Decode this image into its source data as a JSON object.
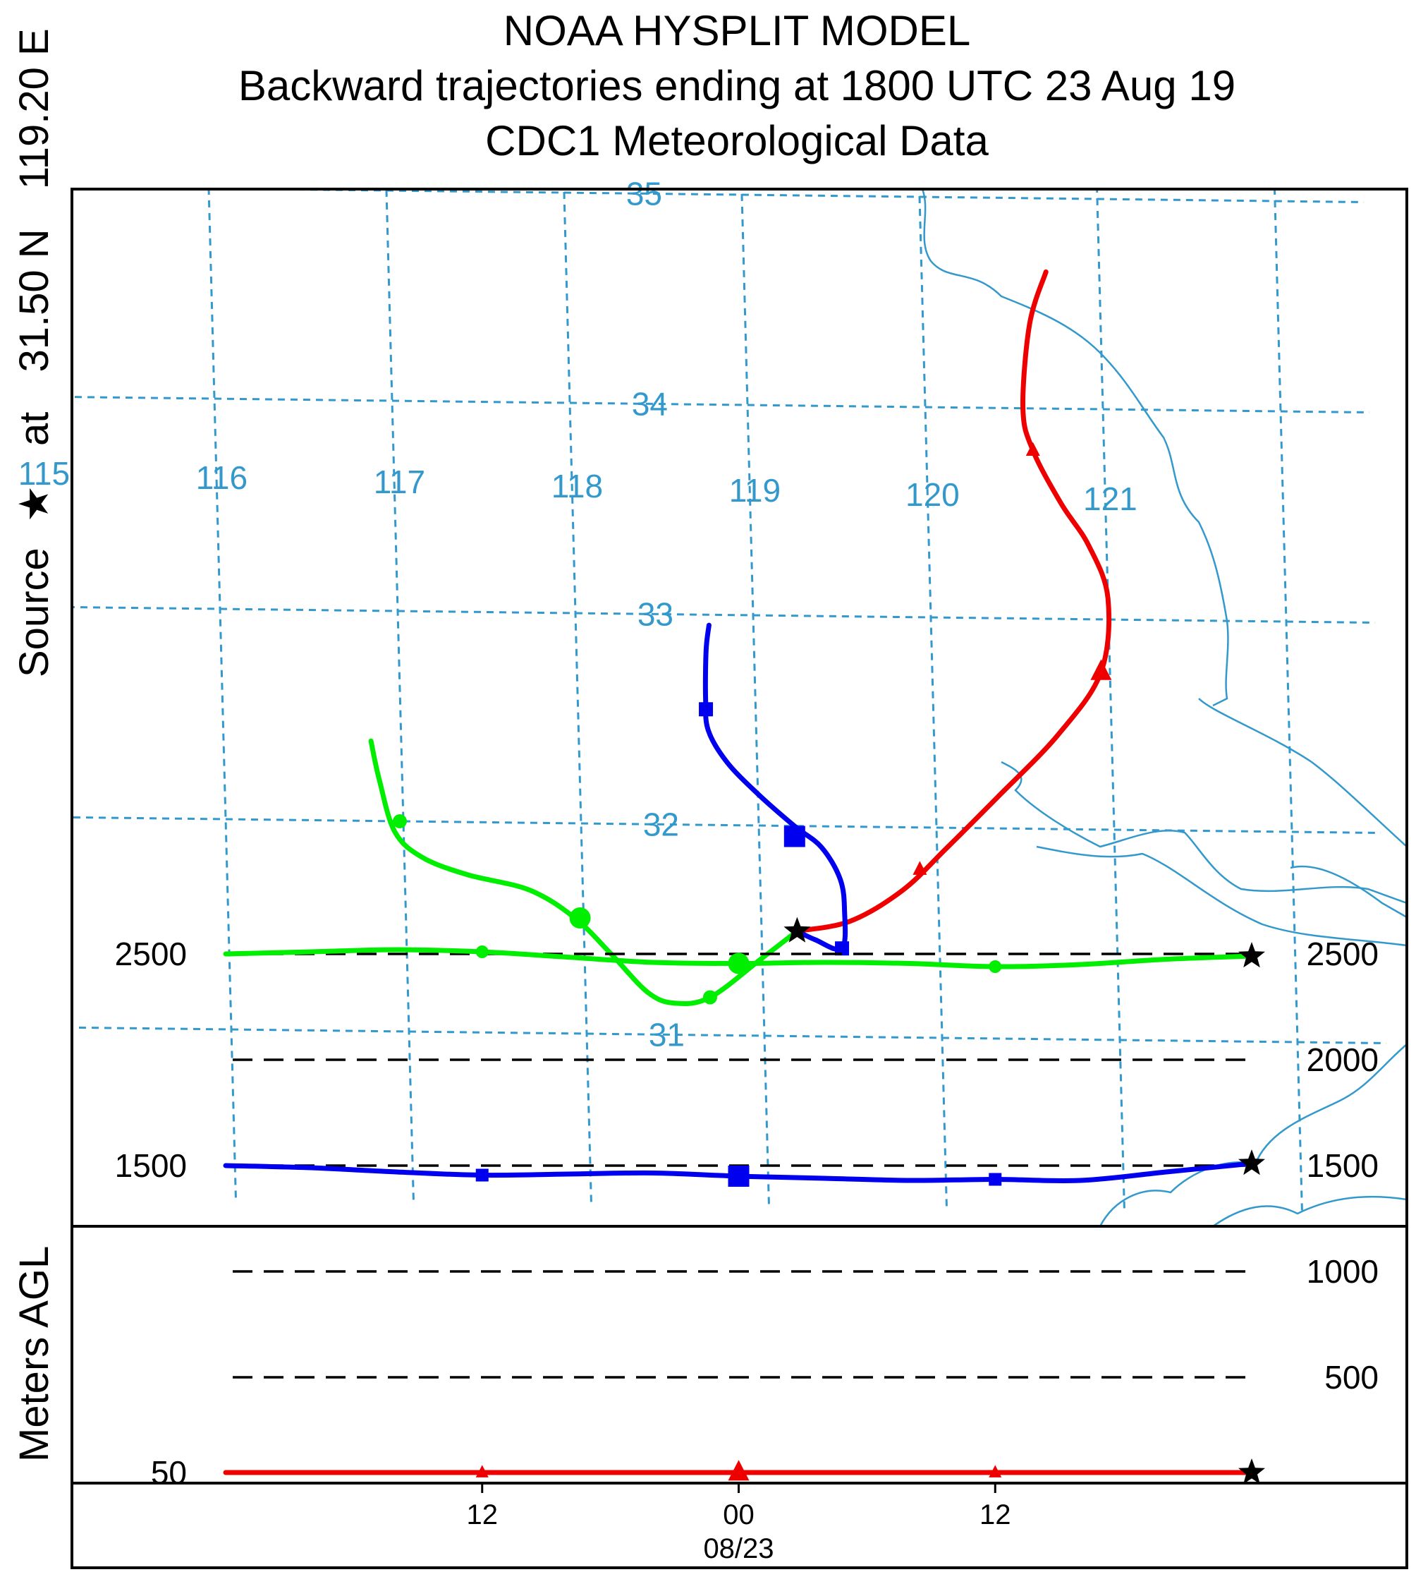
{
  "titles": {
    "line1": "NOAA HYSPLIT MODEL",
    "line2": "Backward trajectories ending at 1800 UTC 23 Aug 19",
    "line3": "CDC1 Meteorological Data"
  },
  "side_label": {
    "source": "Source",
    "star": "★",
    "at": "at",
    "lat": "31.50 N",
    "lon": "119.20 E"
  },
  "vertical_axis_label": "Meters AGL",
  "colors": {
    "grid": "#3399cc",
    "green": "#00ee00",
    "blue": "#0000ee",
    "red": "#ee0000",
    "coast": "#3399cc"
  },
  "chart_data": {
    "type": "line",
    "map": {
      "longitudes": [
        "115",
        "116",
        "117",
        "118",
        "119",
        "120",
        "121"
      ],
      "latitudes": [
        "35",
        "34",
        "33",
        "32",
        "31"
      ],
      "source": {
        "lat": 31.5,
        "lon": 119.2
      },
      "series": [
        {
          "name": "50 m AGL",
          "color": "#ee0000",
          "marker": "triangle",
          "path": [
            [
              119.2,
              31.5
            ],
            [
              119.5,
              31.55
            ],
            [
              119.8,
              31.7
            ],
            [
              120.05,
              31.9
            ],
            [
              120.35,
              32.15
            ],
            [
              120.7,
              32.45
            ],
            [
              120.95,
              32.75
            ],
            [
              121.0,
              33.1
            ],
            [
              120.9,
              33.35
            ],
            [
              120.75,
              33.55
            ],
            [
              120.6,
              33.8
            ],
            [
              120.55,
              34.0
            ],
            [
              120.6,
              34.4
            ],
            [
              120.7,
              34.65
            ]
          ],
          "markers": [
            [
              119.2,
              31.5
            ],
            [
              119.9,
              31.8
            ],
            [
              120.95,
              32.75
            ],
            [
              120.6,
              33.8
            ]
          ]
        },
        {
          "name": "1500 m AGL",
          "color": "#0000ee",
          "marker": "square",
          "path": [
            [
              119.2,
              31.5
            ],
            [
              119.3,
              31.46
            ],
            [
              119.45,
              31.42
            ],
            [
              119.47,
              31.6
            ],
            [
              119.45,
              31.75
            ],
            [
              119.35,
              31.9
            ],
            [
              119.2,
              32.0
            ],
            [
              119.0,
              32.15
            ],
            [
              118.83,
              32.3
            ],
            [
              118.73,
              32.45
            ],
            [
              118.72,
              32.6
            ],
            [
              118.73,
              32.83
            ],
            [
              118.75,
              32.95
            ]
          ],
          "markers": [
            [
              119.2,
              31.5
            ],
            [
              119.45,
              31.42
            ],
            [
              119.2,
              31.95
            ],
            [
              118.72,
              32.55
            ]
          ]
        },
        {
          "name": "2500 m AGL",
          "color": "#00ee00",
          "marker": "circle",
          "path": [
            [
              119.2,
              31.5
            ],
            [
              119.0,
              31.37
            ],
            [
              118.7,
              31.18
            ],
            [
              118.5,
              31.15
            ],
            [
              118.35,
              31.2
            ],
            [
              118.15,
              31.38
            ],
            [
              117.95,
              31.55
            ],
            [
              117.7,
              31.68
            ],
            [
              117.35,
              31.75
            ],
            [
              117.1,
              31.83
            ],
            [
              116.95,
              31.95
            ],
            [
              116.87,
              32.2
            ],
            [
              116.83,
              32.38
            ]
          ],
          "markers": [
            [
              119.2,
              31.5
            ],
            [
              118.7,
              31.18
            ],
            [
              117.98,
              31.55
            ],
            [
              116.98,
              32.0
            ]
          ]
        }
      ]
    },
    "vertical": {
      "ylabel": "Meters AGL",
      "yticks_left": [
        "2500",
        "1500",
        "50"
      ],
      "yticks_right": [
        "2500",
        "2000",
        "1500",
        "1000",
        "500"
      ],
      "xticks": [
        "12",
        "00",
        "12"
      ],
      "date_label": "08/23",
      "hours_range": [
        -48,
        0
      ],
      "series": [
        {
          "name": "2500 m AGL",
          "color": "#00ee00",
          "marker": "circle",
          "hours": [
            0,
            -4,
            -8,
            -12,
            -16,
            -20,
            -24,
            -28,
            -32,
            -36,
            -40,
            -44,
            -48
          ],
          "heights": [
            2500,
            2510,
            2520,
            2510,
            2485,
            2460,
            2455,
            2460,
            2455,
            2440,
            2450,
            2475,
            2490
          ],
          "marker_hours": [
            0,
            -12,
            -24,
            -36
          ]
        },
        {
          "name": "1500 m AGL",
          "color": "#0000ee",
          "marker": "square",
          "hours": [
            0,
            -4,
            -8,
            -12,
            -16,
            -20,
            -24,
            -28,
            -32,
            -36,
            -40,
            -44,
            -48
          ],
          "heights": [
            1500,
            1490,
            1470,
            1455,
            1460,
            1465,
            1450,
            1440,
            1430,
            1435,
            1430,
            1470,
            1510
          ],
          "marker_hours": [
            0,
            -12,
            -24,
            -36
          ]
        },
        {
          "name": "50 m AGL",
          "color": "#ee0000",
          "marker": "triangle",
          "hours": [
            0,
            -8,
            -16,
            -24,
            -32,
            -40,
            -48
          ],
          "heights": [
            50,
            50,
            50,
            50,
            50,
            50,
            50
          ],
          "marker_hours": [
            0,
            -12,
            -24,
            -36
          ]
        }
      ]
    }
  }
}
